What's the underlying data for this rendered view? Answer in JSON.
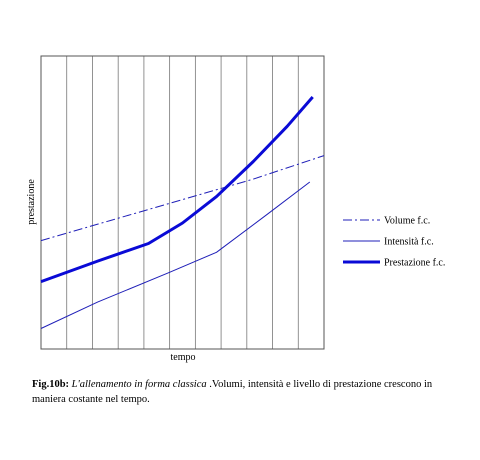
{
  "chart_data": {
    "type": "line",
    "xlabel": "tempo",
    "ylabel": "prestazione",
    "grid": "vertical-lines",
    "legend": "right",
    "series": [
      {
        "name": "Volume f.c.",
        "style": "dash-dot",
        "color": "#1f1fb8",
        "x": [
          0,
          0.25,
          0.5,
          0.75,
          1.0
        ],
        "y": [
          0.37,
          0.44,
          0.51,
          0.58,
          0.66
        ]
      },
      {
        "name": "Intensità f.c.",
        "style": "thin",
        "color": "#1f1fb8",
        "x": [
          0,
          0.2,
          0.45,
          0.62,
          0.8,
          0.95
        ],
        "y": [
          0.07,
          0.16,
          0.26,
          0.33,
          0.46,
          0.57
        ]
      },
      {
        "name": "Prestazione f.c.",
        "style": "thick",
        "color": "#0a0ad6",
        "x": [
          0,
          0.2,
          0.38,
          0.5,
          0.62,
          0.75,
          0.87,
          0.96
        ],
        "y": [
          0.23,
          0.3,
          0.36,
          0.43,
          0.52,
          0.64,
          0.76,
          0.86
        ]
      }
    ]
  },
  "caption": {
    "label": "Fig.10b:",
    "title": "L'allenamento in forma classica",
    "text": " .Volumi, intensità e livello di prestazione crescono in maniera costante nel tempo."
  }
}
